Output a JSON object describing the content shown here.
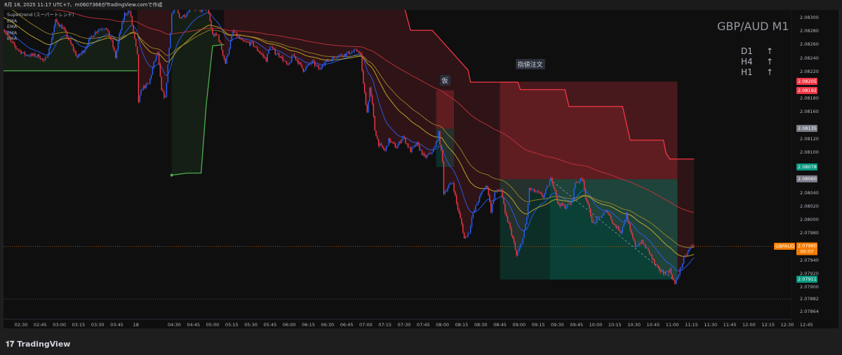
{
  "header": {
    "title": "8月 18, 2025 11:17 UTC+7、m0607366がTradingView.comで作成"
  },
  "legend": [
    "Supertrend (スーパートレンド)",
    "EMA",
    "EMA",
    "EMA",
    "EMA"
  ],
  "overlay": {
    "symbol": "GBP/AUD M1",
    "timeframes": [
      {
        "label": "D1",
        "arrow": "↑"
      },
      {
        "label": "H4",
        "arrow": "↑"
      },
      {
        "label": "H1",
        "arrow": "↑"
      }
    ]
  },
  "footer": {
    "brand": "TradingView",
    "logo_icon": "tradingview-logo-icon"
  },
  "chart_data": {
    "type": "candlestick",
    "symbol": "GBPAUD",
    "interval": "1 minute",
    "colors": {
      "up": "#2962ff",
      "down": "#f23645",
      "background": "#0f0f0f",
      "supertrend_up": "#4caf50",
      "supertrend_down": "#f23645",
      "ema": [
        "#2962ff",
        "#d4b82a",
        "#a08a2a",
        "#d0323f"
      ]
    },
    "y_ticks": [
      "2.08300",
      "2.08280",
      "2.08260",
      "2.08240",
      "2.08220",
      "2.08180",
      "2.08160",
      "2.08120",
      "2.08100",
      "2.08040",
      "2.08020",
      "2.08000",
      "2.07980",
      "2.07940",
      "2.07920",
      "2.07900",
      "2.07882",
      "2.07864"
    ],
    "x_ticks": [
      {
        "t": "02:30",
        "label": "02:30"
      },
      {
        "t": "02:45",
        "label": "02:45"
      },
      {
        "t": "03:00",
        "label": "03:00"
      },
      {
        "t": "03:15",
        "label": "03:15"
      },
      {
        "t": "03:30",
        "label": "03:30"
      },
      {
        "t": "03:45",
        "label": "03:45"
      },
      {
        "t": "04:00",
        "label": "18"
      },
      {
        "t": "04:30",
        "label": "04:30"
      },
      {
        "t": "04:45",
        "label": "04:45"
      },
      {
        "t": "05:00",
        "label": "05:00"
      },
      {
        "t": "05:15",
        "label": "05:15"
      },
      {
        "t": "05:30",
        "label": "05:30"
      },
      {
        "t": "05:45",
        "label": "05:45"
      },
      {
        "t": "06:00",
        "label": "06:00"
      },
      {
        "t": "06:15",
        "label": "06:15"
      },
      {
        "t": "06:30",
        "label": "06:30"
      },
      {
        "t": "06:45",
        "label": "06:45"
      },
      {
        "t": "07:00",
        "label": "07:00"
      },
      {
        "t": "07:15",
        "label": "07:15"
      },
      {
        "t": "07:30",
        "label": "07:30"
      },
      {
        "t": "07:45",
        "label": "07:45"
      },
      {
        "t": "08:00",
        "label": "08:00"
      },
      {
        "t": "08:15",
        "label": "08:15"
      },
      {
        "t": "08:30",
        "label": "08:30"
      },
      {
        "t": "08:45",
        "label": "08:45"
      },
      {
        "t": "09:00",
        "label": "09:00"
      },
      {
        "t": "09:15",
        "label": "09:15"
      },
      {
        "t": "09:30",
        "label": "09:30"
      },
      {
        "t": "09:45",
        "label": "09:45"
      },
      {
        "t": "10:00",
        "label": "10:00"
      },
      {
        "t": "10:15",
        "label": "10:15"
      },
      {
        "t": "10:30",
        "label": "10:30"
      },
      {
        "t": "10:45",
        "label": "10:45"
      },
      {
        "t": "11:00",
        "label": "11:00"
      },
      {
        "t": "11:15",
        "label": "11:15"
      },
      {
        "t": "11:30",
        "label": "11:30"
      },
      {
        "t": "11:45",
        "label": "11:45"
      },
      {
        "t": "12:00",
        "label": "12:00"
      },
      {
        "t": "12:15",
        "label": "12:15"
      },
      {
        "t": "12:30",
        "label": "12:30"
      },
      {
        "t": "12:45",
        "label": "12:45"
      }
    ],
    "close_path": [
      [
        "02:16",
        2.08284
      ],
      [
        "02:22",
        2.08264
      ],
      [
        "02:26",
        2.08255
      ],
      [
        "02:33",
        2.08245
      ],
      [
        "02:44",
        2.08243
      ],
      [
        "02:48",
        2.08234
      ],
      [
        "02:52",
        2.08253
      ],
      [
        "02:57",
        2.08295
      ],
      [
        "03:03",
        2.08284
      ],
      [
        "03:08",
        2.08264
      ],
      [
        "03:14",
        2.08241
      ],
      [
        "03:19",
        2.08251
      ],
      [
        "03:25",
        2.08272
      ],
      [
        "03:30",
        2.08282
      ],
      [
        "03:36",
        2.08286
      ],
      [
        "03:41",
        2.08264
      ],
      [
        "03:44",
        2.08241
      ],
      [
        "03:47",
        2.08274
      ],
      [
        "03:51",
        2.08305
      ],
      [
        "03:55",
        2.0831
      ],
      [
        "03:58",
        2.08279
      ],
      [
        "04:01",
        2.08243
      ],
      [
        "04:02",
        2.08175
      ],
      [
        "04:05",
        2.08196
      ],
      [
        "04:10",
        2.08201
      ],
      [
        "04:14",
        2.08232
      ],
      [
        "04:17",
        2.08248
      ],
      [
        "04:20",
        2.08191
      ],
      [
        "04:23",
        2.0818
      ],
      [
        "04:28",
        2.08305
      ],
      [
        "04:31",
        2.08316
      ],
      [
        "04:34",
        2.083
      ],
      [
        "04:39",
        2.08305
      ],
      [
        "04:43",
        2.08316
      ],
      [
        "04:50",
        2.0831
      ],
      [
        "04:56",
        2.08316
      ],
      [
        "05:00",
        2.08274
      ],
      [
        "05:04",
        2.08274
      ],
      [
        "05:10",
        2.08232
      ],
      [
        "05:12",
        2.08248
      ],
      [
        "05:16",
        2.08279
      ],
      [
        "05:23",
        2.08264
      ],
      [
        "05:31",
        2.08261
      ],
      [
        "05:37",
        2.08248
      ],
      [
        "05:42",
        2.08237
      ],
      [
        "05:45",
        2.08258
      ],
      [
        "05:49",
        2.08248
      ],
      [
        "05:53",
        2.08243
      ],
      [
        "05:59",
        2.08227
      ],
      [
        "06:03",
        2.08245
      ],
      [
        "06:07",
        2.08234
      ],
      [
        "06:11",
        2.08222
      ],
      [
        "06:18",
        2.08234
      ],
      [
        "06:24",
        2.08222
      ],
      [
        "06:26",
        2.08232
      ],
      [
        "06:32",
        2.08237
      ],
      [
        "06:37",
        2.08243
      ],
      [
        "06:43",
        2.08245
      ],
      [
        "06:48",
        2.08248
      ],
      [
        "06:54",
        2.08251
      ],
      [
        "06:56",
        2.08243
      ],
      [
        "06:58",
        2.08201
      ],
      [
        "07:01",
        2.08159
      ],
      [
        "07:03",
        2.08196
      ],
      [
        "07:05",
        2.0817
      ],
      [
        "07:07",
        2.08133
      ],
      [
        "07:10",
        2.08112
      ],
      [
        "07:15",
        2.08102
      ],
      [
        "07:18",
        2.08118
      ],
      [
        "07:24",
        2.08107
      ],
      [
        "07:29",
        2.08123
      ],
      [
        "07:35",
        2.08102
      ],
      [
        "07:40",
        2.08112
      ],
      [
        "07:46",
        2.08092
      ],
      [
        "07:50",
        2.08097
      ],
      [
        "07:54",
        2.08107
      ],
      [
        "07:57",
        2.08128
      ],
      [
        "08:00",
        2.08086
      ],
      [
        "08:01",
        2.0804
      ],
      [
        "08:05",
        2.0805
      ],
      [
        "08:08",
        2.08055
      ],
      [
        "08:11",
        2.08024
      ],
      [
        "08:15",
        2.07993
      ],
      [
        "08:17",
        2.07972
      ],
      [
        "08:21",
        2.07982
      ],
      [
        "08:23",
        2.08003
      ],
      [
        "08:27",
        2.08024
      ],
      [
        "08:32",
        2.08045
      ],
      [
        "08:35",
        2.0805
      ],
      [
        "08:38",
        2.08013
      ],
      [
        "08:41",
        2.0804
      ],
      [
        "08:46",
        2.08045
      ],
      [
        "08:49",
        2.08008
      ],
      [
        "08:52",
        2.07993
      ],
      [
        "08:55",
        2.07972
      ],
      [
        "08:58",
        2.07946
      ],
      [
        "09:03",
        2.07972
      ],
      [
        "09:06",
        2.08003
      ],
      [
        "09:08",
        2.08045
      ],
      [
        "09:14",
        2.0804
      ],
      [
        "09:19",
        2.08034
      ],
      [
        "09:25",
        2.0806
      ],
      [
        "09:28",
        2.08045
      ],
      [
        "09:30",
        2.08024
      ],
      [
        "09:36",
        2.08019
      ],
      [
        "09:41",
        2.08024
      ],
      [
        "09:44",
        2.08055
      ],
      [
        "09:50",
        2.0806
      ],
      [
        "09:52",
        2.08034
      ],
      [
        "09:58",
        2.07993
      ],
      [
        "10:03",
        2.08003
      ],
      [
        "10:09",
        2.08013
      ],
      [
        "10:14",
        2.07993
      ],
      [
        "10:20",
        2.07982
      ],
      [
        "10:24",
        2.08008
      ],
      [
        "10:27",
        2.07982
      ],
      [
        "10:31",
        2.07961
      ],
      [
        "10:36",
        2.07967
      ],
      [
        "10:42",
        2.07951
      ],
      [
        "10:47",
        2.0793
      ],
      [
        "10:53",
        2.0792
      ],
      [
        "10:58",
        2.07925
      ],
      [
        "11:02",
        2.07904
      ],
      [
        "11:05",
        2.0792
      ],
      [
        "11:09",
        2.07941
      ],
      [
        "11:15",
        2.07961
      ],
      [
        "11:17",
        2.0796
      ]
    ],
    "supertrend": {
      "up": [
        [
          [
            "02:16",
            2.08221
          ],
          [
            "04:01",
            2.08221
          ]
        ],
        [
          [
            "04:28",
            2.08066
          ],
          [
            "04:40",
            2.08069
          ],
          [
            "04:51",
            2.08069
          ],
          [
            "04:55",
            2.0817
          ],
          [
            "05:00",
            2.08258
          ],
          [
            "05:09",
            2.0826
          ]
        ]
      ],
      "down": [
        [
          [
            "04:01",
            2.0833
          ],
          [
            "04:28",
            2.0833
          ]
        ],
        [
          [
            "05:09",
            2.0833
          ],
          [
            "07:28",
            2.0833
          ],
          [
            "07:35",
            2.08281
          ],
          [
            "07:52",
            2.08281
          ],
          [
            "08:20",
            2.08222
          ],
          [
            "08:22",
            2.08204
          ],
          [
            "08:59",
            2.08204
          ],
          [
            "09:01",
            2.08193
          ],
          [
            "09:36",
            2.08193
          ],
          [
            "09:39",
            2.08168
          ],
          [
            "10:21",
            2.08168
          ],
          [
            "10:27",
            2.08118
          ],
          [
            "10:53",
            2.08118
          ],
          [
            "10:55",
            2.08099
          ],
          [
            "10:58",
            2.0809
          ],
          [
            "11:17",
            2.0809
          ]
        ]
      ]
    },
    "positions": [
      {
        "label": "仮",
        "start": "07:55",
        "end": "08:09",
        "stop": 2.08192,
        "entry": 2.08135,
        "target": 2.08078
      },
      {
        "label": "指値注文",
        "start": "08:45",
        "end": "11:04",
        "fill": "09:24",
        "close": "11:01",
        "stop": 2.08205,
        "entry": 2.0806,
        "target": 2.07911
      }
    ],
    "price_labels": [
      {
        "value": "2.08205",
        "color": "#f23645"
      },
      {
        "value": "2.08192",
        "color": "#f23645"
      },
      {
        "value": "2.08135",
        "color": "#787b86"
      },
      {
        "value": "2.08078",
        "color": "#089981"
      },
      {
        "value": "2.08060",
        "color": "#787b86"
      },
      {
        "value": "2.07960",
        "sub": "00:07",
        "color": "#f57c00",
        "symbol": "GBPAUD"
      },
      {
        "value": "2.07911",
        "color": "#089981"
      }
    ],
    "last_price": 2.0796,
    "low_line": 2.07882
  }
}
